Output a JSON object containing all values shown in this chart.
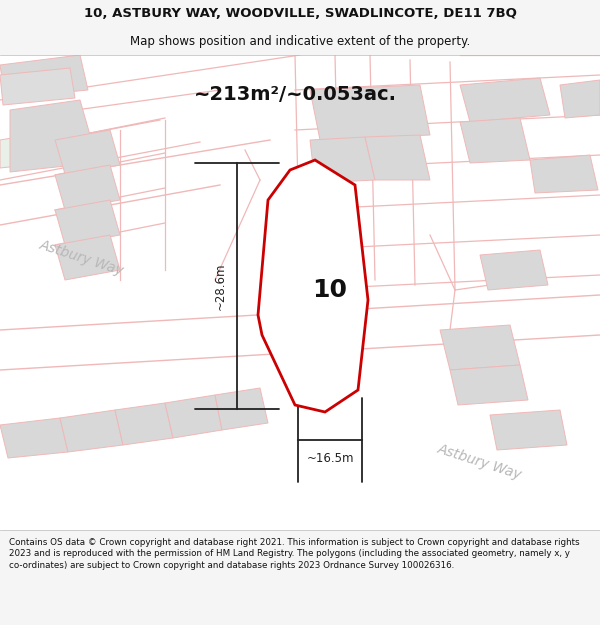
{
  "title_line1": "10, ASTBURY WAY, WOODVILLE, SWADLINCOTE, DE11 7BQ",
  "title_line2": "Map shows position and indicative extent of the property.",
  "area_text": "~213m²/~0.053ac.",
  "dim_width": "~16.5m",
  "dim_height": "~28.6m",
  "property_number": "10",
  "road_label1": "Astbury Way",
  "road_label2": "Astbury Way",
  "footer_text": "Contains OS data © Crown copyright and database right 2021. This information is subject to Crown copyright and database rights 2023 and is reproduced with the permission of HM Land Registry. The polygons (including the associated geometry, namely x, y co-ordinates) are subject to Crown copyright and database rights 2023 Ordnance Survey 100026316.",
  "bg_color": "#f5f5f5",
  "map_bg": "#ffffff",
  "road_fill": "#f5f5f5",
  "road_color": "#f0b8b8",
  "building_color": "#d8d8d8",
  "building_edge": "#f0b8b8",
  "property_fill": "#ffffff",
  "property_edge": "#cc0000",
  "dim_color": "#222222",
  "road_label_color": "#b8b8b8",
  "title_color": "#111111",
  "footer_color": "#111111",
  "green_tint": "#e8f0e8"
}
